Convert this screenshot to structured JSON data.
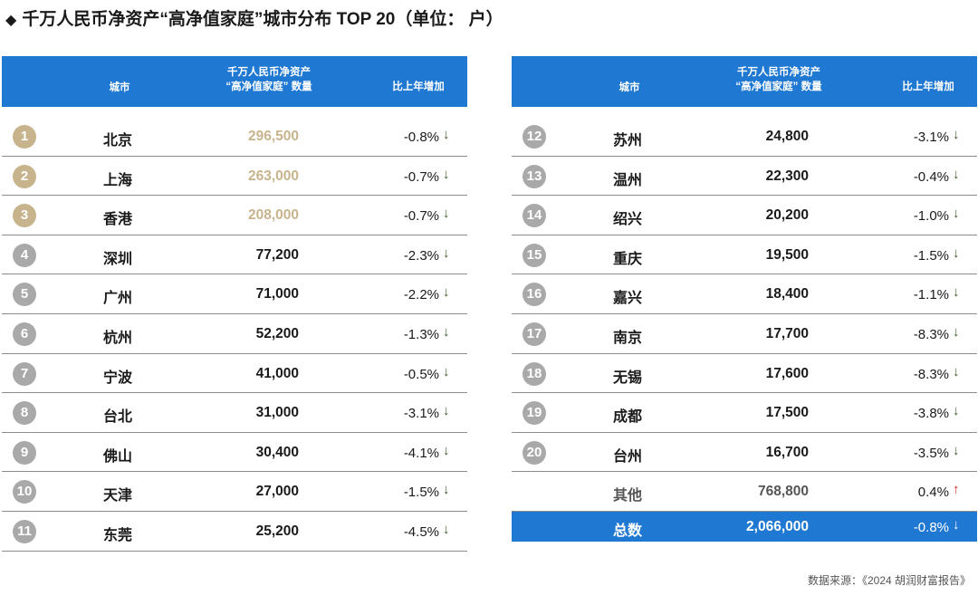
{
  "title": "千万人民币净资产“高净值家庭”城市分布 TOP 20（单位： 户）",
  "header": {
    "city": "城市",
    "count_line1": "千万人民币净资产",
    "count_line2": "“高净值家庭” 数量",
    "change": "比上年增加"
  },
  "left_rows": [
    {
      "rank": "1",
      "city": "北京",
      "count": "296,500",
      "change": "-0.8%",
      "dir": "down",
      "top3": true
    },
    {
      "rank": "2",
      "city": "上海",
      "count": "263,000",
      "change": "-0.7%",
      "dir": "down",
      "top3": true
    },
    {
      "rank": "3",
      "city": "香港",
      "count": "208,000",
      "change": "-0.7%",
      "dir": "down",
      "top3": true
    },
    {
      "rank": "4",
      "city": "深圳",
      "count": "77,200",
      "change": "-2.3%",
      "dir": "down"
    },
    {
      "rank": "5",
      "city": "广州",
      "count": "71,000",
      "change": "-2.2%",
      "dir": "down"
    },
    {
      "rank": "6",
      "city": "杭州",
      "count": "52,200",
      "change": "-1.3%",
      "dir": "down"
    },
    {
      "rank": "7",
      "city": "宁波",
      "count": "41,000",
      "change": "-0.5%",
      "dir": "down"
    },
    {
      "rank": "8",
      "city": "台北",
      "count": "31,000",
      "change": "-3.1%",
      "dir": "down"
    },
    {
      "rank": "9",
      "city": "佛山",
      "count": "30,400",
      "change": "-4.1%",
      "dir": "down"
    },
    {
      "rank": "10",
      "city": "天津",
      "count": "27,000",
      "change": "-1.5%",
      "dir": "down"
    },
    {
      "rank": "11",
      "city": "东莞",
      "count": "25,200",
      "change": "-4.5%",
      "dir": "down"
    }
  ],
  "right_rows": [
    {
      "rank": "12",
      "city": "苏州",
      "count": "24,800",
      "change": "-3.1%",
      "dir": "down"
    },
    {
      "rank": "13",
      "city": "温州",
      "count": "22,300",
      "change": "-0.4%",
      "dir": "down"
    },
    {
      "rank": "14",
      "city": "绍兴",
      "count": "20,200",
      "change": "-1.0%",
      "dir": "down"
    },
    {
      "rank": "15",
      "city": "重庆",
      "count": "19,500",
      "change": "-1.5%",
      "dir": "down"
    },
    {
      "rank": "16",
      "city": "嘉兴",
      "count": "18,400",
      "change": "-1.1%",
      "dir": "down"
    },
    {
      "rank": "17",
      "city": "南京",
      "count": "17,700",
      "change": "-8.3%",
      "dir": "down"
    },
    {
      "rank": "18",
      "city": "无锡",
      "count": "17,600",
      "change": "-8.3%",
      "dir": "down"
    },
    {
      "rank": "19",
      "city": "成都",
      "count": "17,500",
      "change": "-3.8%",
      "dir": "down"
    },
    {
      "rank": "20",
      "city": "台州",
      "count": "16,700",
      "change": "-3.5%",
      "dir": "down"
    }
  ],
  "other": {
    "city": "其他",
    "count": "768,800",
    "change": "0.4%",
    "dir": "up"
  },
  "total": {
    "city": "总数",
    "count": "2,066,000",
    "change": "-0.8%",
    "dir": "down"
  },
  "arrows": {
    "down": "↓",
    "up": "↑"
  },
  "colors": {
    "header_blue": "#1f78d1",
    "gold": "#c8b48c",
    "badge_gray": "#a9a9a9",
    "down_green": "#3a5a28",
    "up_red": "#d9231d"
  },
  "source": "数据来源：《2024 胡润财富报告》"
}
